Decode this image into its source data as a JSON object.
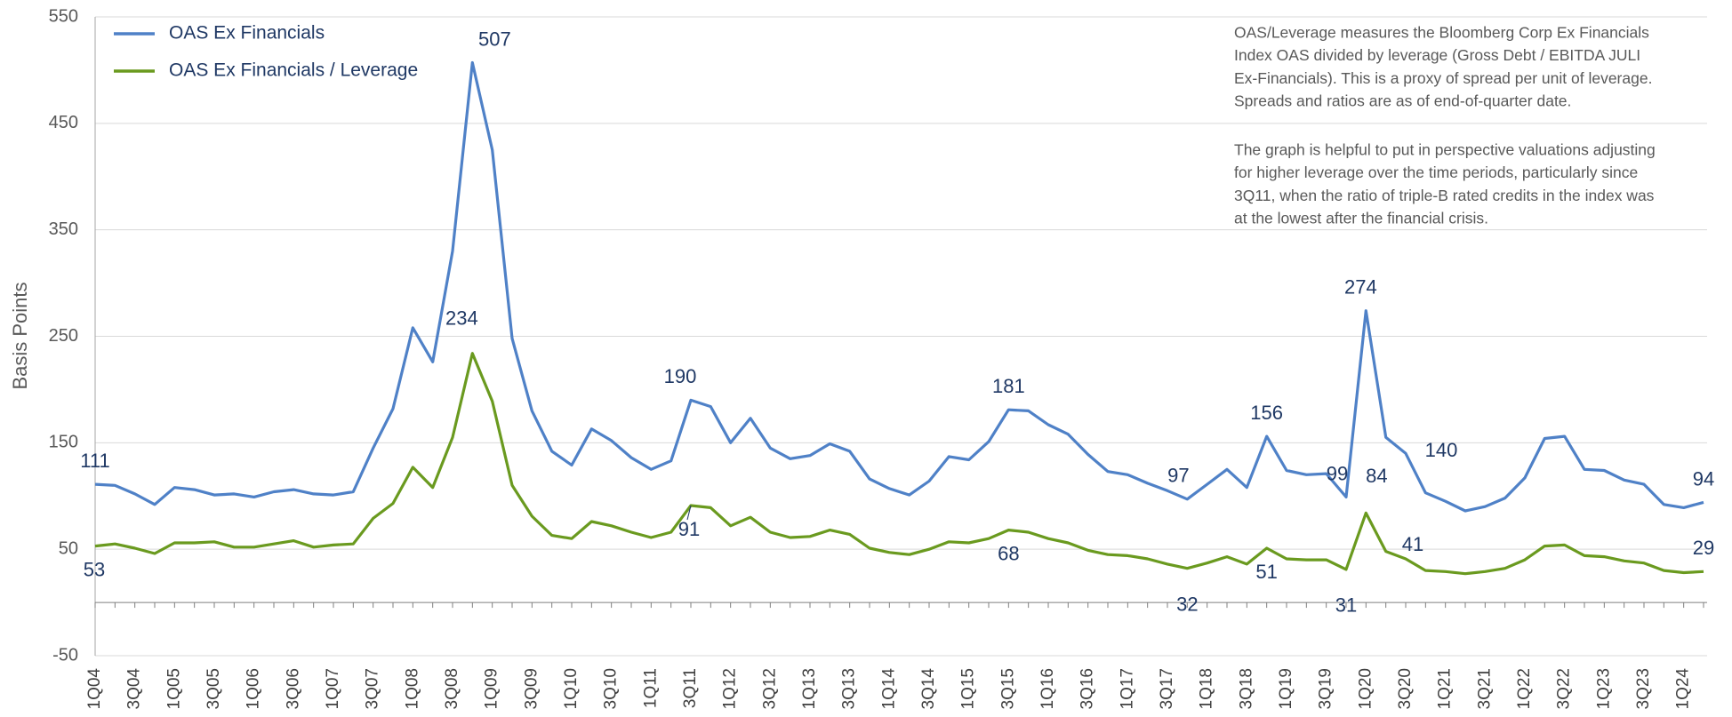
{
  "chart_data": {
    "type": "line",
    "y_label": "Basis Points",
    "categories": [
      "1Q04",
      null,
      "3Q04",
      null,
      "1Q05",
      null,
      "3Q05",
      null,
      "1Q06",
      null,
      "3Q06",
      null,
      "1Q07",
      null,
      "3Q07",
      null,
      "1Q08",
      null,
      "3Q08",
      null,
      "1Q09",
      null,
      "3Q09",
      null,
      "1Q10",
      null,
      "3Q10",
      null,
      "1Q11",
      null,
      "3Q11",
      null,
      "1Q12",
      null,
      "3Q12",
      null,
      "1Q13",
      null,
      "3Q13",
      null,
      "1Q14",
      null,
      "3Q14",
      null,
      "1Q15",
      null,
      "3Q15",
      null,
      "1Q16",
      null,
      "3Q16",
      null,
      "1Q17",
      null,
      "3Q17",
      null,
      "1Q18",
      null,
      "3Q18",
      null,
      "1Q19",
      null,
      "3Q19",
      null,
      "1Q20",
      null,
      "3Q20",
      null,
      "1Q21",
      null,
      "3Q21",
      null,
      "1Q22",
      null,
      "3Q22",
      null,
      "1Q23",
      null,
      "3Q23",
      null,
      "1Q24",
      null
    ],
    "series": [
      {
        "name": "OAS Ex Financials",
        "color": "#4f81c7",
        "values": [
          111,
          110,
          102,
          92,
          108,
          106,
          101,
          102,
          99,
          104,
          106,
          102,
          101,
          104,
          145,
          182,
          258,
          226,
          330,
          507,
          425,
          248,
          180,
          142,
          129,
          163,
          152,
          136,
          125,
          133,
          190,
          184,
          150,
          173,
          145,
          135,
          138,
          149,
          142,
          116,
          107,
          101,
          114,
          137,
          134,
          151,
          181,
          180,
          167,
          158,
          139,
          123,
          120,
          112,
          105,
          97,
          111,
          125,
          108,
          156,
          124,
          120,
          121,
          99,
          274,
          155,
          140,
          103,
          95,
          86,
          90,
          98,
          117,
          154,
          156,
          125,
          124,
          115,
          111,
          92,
          89,
          94
        ],
        "data_labels": [
          0,
          19,
          30,
          46,
          55,
          59,
          63,
          64,
          66,
          81
        ]
      },
      {
        "name": "OAS Ex Financials / Leverage",
        "color": "#6a9a1f",
        "values": [
          53,
          55,
          51,
          46,
          56,
          56,
          57,
          52,
          52,
          55,
          58,
          52,
          54,
          55,
          79,
          93,
          127,
          108,
          155,
          234,
          189,
          110,
          81,
          63,
          60,
          76,
          72,
          66,
          61,
          66,
          91,
          89,
          72,
          80,
          66,
          61,
          62,
          68,
          64,
          51,
          47,
          45,
          50,
          57,
          56,
          60,
          68,
          66,
          60,
          56,
          49,
          45,
          44,
          41,
          36,
          32,
          37,
          43,
          36,
          51,
          41,
          40,
          40,
          31,
          84,
          48,
          41,
          30,
          29,
          27,
          29,
          32,
          40,
          53,
          54,
          44,
          43,
          39,
          37,
          30,
          28,
          29
        ],
        "data_labels": [
          0,
          19,
          30,
          46,
          55,
          59,
          63,
          64,
          66,
          81
        ]
      }
    ],
    "ylim": [
      -50,
      550
    ],
    "yticks": [
      -50,
      50,
      150,
      250,
      350,
      450,
      550
    ],
    "grid": true,
    "legend": "top-left",
    "annotation": [
      [
        "OAS/Leverage measures the Bloomberg Corp Ex Financials",
        "Index OAS divided by leverage (Gross Debt / EBITDA JULI",
        "Ex-Financials). This is a proxy of spread per unit of leverage.",
        "Spreads and ratios are as of end-of-quarter date."
      ],
      [
        "The graph is helpful to put in perspective valuations adjusting",
        "for higher leverage over the time periods, particularly since",
        "3Q11, when the ratio of triple-B rated credits in the index was",
        "at the lowest after the financial crisis."
      ]
    ]
  }
}
